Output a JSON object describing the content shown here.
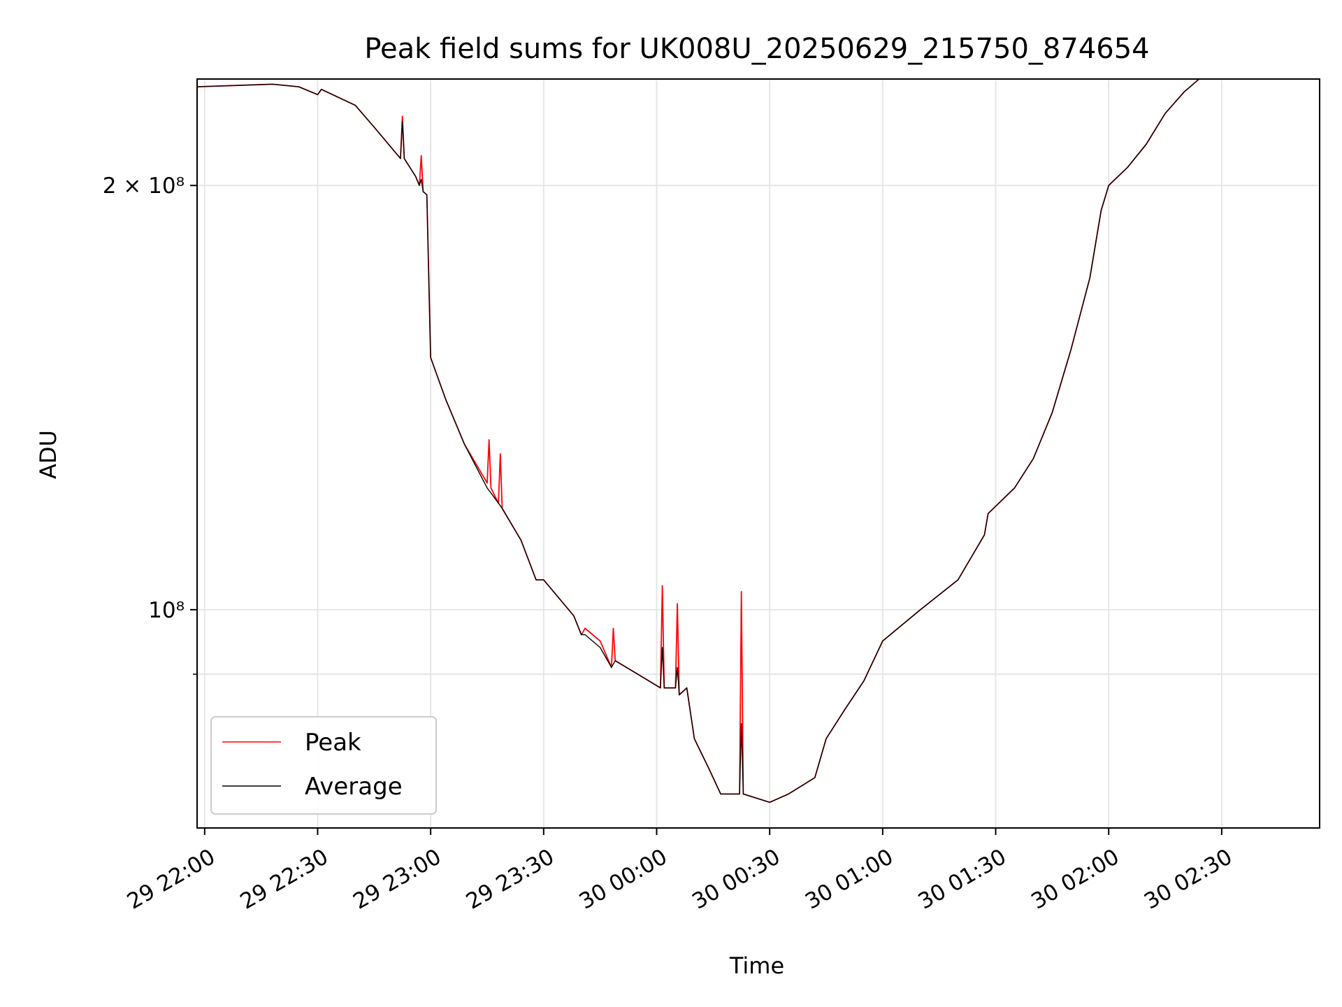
{
  "chart_data": {
    "type": "line",
    "title": "Peak field sums for UK008U_20250629_215750_874654",
    "xlabel": "Time",
    "ylabel": "ADU",
    "yscale": "log",
    "grid": true,
    "legend_position": "lower-left",
    "x_ticks": [
      "29 22:00",
      "29 22:30",
      "29 23:00",
      "29 23:30",
      "30 00:00",
      "30 00:30",
      "30 01:00",
      "30 01:30",
      "30 02:00",
      "30 02:30"
    ],
    "y_tick_labels": [
      "2 × 10⁸",
      "10⁸"
    ],
    "xlim": [
      "2025-06-29 21:58",
      "2025-06-30 02:56"
    ],
    "ylim": [
      70000000.0,
      238000000.0
    ],
    "series": [
      {
        "name": "Peak",
        "color": "#ff0000",
        "x": [
          "2025-06-29 21:58",
          "2025-06-29 22:18",
          "2025-06-29 22:25",
          "2025-06-29 22:30",
          "2025-06-29 22:31",
          "2025-06-29 22:40",
          "2025-06-29 22:45",
          "2025-06-29 22:52",
          "2025-06-29 22:52:30",
          "2025-06-29 22:53",
          "2025-06-29 22:56",
          "2025-06-29 22:57",
          "2025-06-29 22:57:30",
          "2025-06-29 22:58",
          "2025-06-29 22:59",
          "2025-06-29 23:00",
          "2025-06-29 23:04",
          "2025-06-29 23:09",
          "2025-06-29 23:15",
          "2025-06-29 23:15:30",
          "2025-06-29 23:16",
          "2025-06-29 23:18",
          "2025-06-29 23:18:30",
          "2025-06-29 23:19",
          "2025-06-29 23:24",
          "2025-06-29 23:28",
          "2025-06-29 23:30",
          "2025-06-29 23:38",
          "2025-06-29 23:40",
          "2025-06-29 23:41",
          "2025-06-29 23:45",
          "2025-06-29 23:48",
          "2025-06-29 23:48:30",
          "2025-06-29 23:49",
          "2025-06-29 23:55",
          "2025-06-30 00:01",
          "2025-06-30 00:01:30",
          "2025-06-30 00:02",
          "2025-06-30 00:05",
          "2025-06-30 00:05:30",
          "2025-06-30 00:06",
          "2025-06-30 00:08",
          "2025-06-30 00:10",
          "2025-06-30 00:14",
          "2025-06-30 00:17",
          "2025-06-30 00:22",
          "2025-06-30 00:22:30",
          "2025-06-30 00:23",
          "2025-06-30 00:30",
          "2025-06-30 00:35",
          "2025-06-30 00:42",
          "2025-06-30 00:45",
          "2025-06-30 00:50",
          "2025-06-30 00:55",
          "2025-06-30 01:00",
          "2025-06-30 01:10",
          "2025-06-30 01:20",
          "2025-06-30 01:27",
          "2025-06-30 01:28",
          "2025-06-30 01:35",
          "2025-06-30 01:40",
          "2025-06-30 01:45",
          "2025-06-30 01:50",
          "2025-06-30 01:55",
          "2025-06-30 01:58",
          "2025-06-30 02:00",
          "2025-06-30 02:05",
          "2025-06-30 02:10",
          "2025-06-30 02:15",
          "2025-06-30 02:20",
          "2025-06-30 02:24"
        ],
        "y": [
          235000000.0,
          236000000.0,
          235000000.0,
          232000000.0,
          234000000.0,
          228000000.0,
          220000000.0,
          209000000.0,
          224000000.0,
          209000000.0,
          203000000.0,
          200000000.0,
          210000000.0,
          198000000.0,
          197000000.0,
          151000000.0,
          141000000.0,
          131000000.0,
          123000000.0,
          132000000.0,
          122000000.0,
          119000000.0,
          129000000.0,
          118000000.0,
          112000000.0,
          105000000.0,
          105000000.0,
          99000000.0,
          96000000.0,
          97000000.0,
          95000000.0,
          91000000.0,
          97000000.0,
          92000000.0,
          90000000.0,
          88000000.0,
          104000000.0,
          88000000.0,
          88000000.0,
          101000000.0,
          87000000.0,
          88000000.0,
          81000000.0,
          77000000.0,
          74000000.0,
          74000000.0,
          103000000.0,
          74000000.0,
          73000000.0,
          74000000.0,
          76000000.0,
          81000000.0,
          85000000.0,
          89000000.0,
          95000000.0,
          100000000.0,
          105000000.0,
          113000000.0,
          117000000.0,
          122000000.0,
          128000000.0,
          138000000.0,
          153000000.0,
          172000000.0,
          192000000.0,
          200000000.0,
          206000000.0,
          214000000.0,
          225000000.0,
          233000000.0,
          238000000.0
        ]
      },
      {
        "name": "Average",
        "color": "#000000",
        "x": [
          "2025-06-29 21:58",
          "2025-06-29 22:18",
          "2025-06-29 22:25",
          "2025-06-29 22:30",
          "2025-06-29 22:31",
          "2025-06-29 22:40",
          "2025-06-29 22:45",
          "2025-06-29 22:52",
          "2025-06-29 22:52:30",
          "2025-06-29 22:53",
          "2025-06-29 22:56",
          "2025-06-29 22:57",
          "2025-06-29 22:57:30",
          "2025-06-29 22:58",
          "2025-06-29 22:59",
          "2025-06-29 23:00",
          "2025-06-29 23:04",
          "2025-06-29 23:09",
          "2025-06-29 23:15",
          "2025-06-29 23:16",
          "2025-06-29 23:18",
          "2025-06-29 23:19",
          "2025-06-29 23:24",
          "2025-06-29 23:28",
          "2025-06-29 23:30",
          "2025-06-29 23:38",
          "2025-06-29 23:40",
          "2025-06-29 23:41",
          "2025-06-29 23:45",
          "2025-06-29 23:48",
          "2025-06-29 23:49",
          "2025-06-29 23:55",
          "2025-06-30 00:01",
          "2025-06-30 00:01:30",
          "2025-06-30 00:02",
          "2025-06-30 00:05",
          "2025-06-30 00:05:30",
          "2025-06-30 00:06",
          "2025-06-30 00:08",
          "2025-06-30 00:10",
          "2025-06-30 00:14",
          "2025-06-30 00:17",
          "2025-06-30 00:22",
          "2025-06-30 00:22:30",
          "2025-06-30 00:23",
          "2025-06-30 00:30",
          "2025-06-30 00:35",
          "2025-06-30 00:42",
          "2025-06-30 00:45",
          "2025-06-30 00:50",
          "2025-06-30 00:55",
          "2025-06-30 01:00",
          "2025-06-30 01:10",
          "2025-06-30 01:20",
          "2025-06-30 01:27",
          "2025-06-30 01:28",
          "2025-06-30 01:35",
          "2025-06-30 01:40",
          "2025-06-30 01:45",
          "2025-06-30 01:50",
          "2025-06-30 01:55",
          "2025-06-30 01:58",
          "2025-06-30 02:00",
          "2025-06-30 02:05",
          "2025-06-30 02:10",
          "2025-06-30 02:15",
          "2025-06-30 02:20",
          "2025-06-30 02:24"
        ],
        "y": [
          235000000.0,
          236000000.0,
          235000000.0,
          232000000.0,
          234000000.0,
          228000000.0,
          220000000.0,
          209000000.0,
          222000000.0,
          209000000.0,
          203000000.0,
          200000000.0,
          202000000.0,
          198000000.0,
          197000000.0,
          151000000.0,
          141000000.0,
          131000000.0,
          122000000.0,
          121000000.0,
          119000000.0,
          118000000.0,
          112000000.0,
          105000000.0,
          105000000.0,
          99000000.0,
          96000000.0,
          96000000.0,
          94000000.0,
          91000000.0,
          92000000.0,
          90000000.0,
          88000000.0,
          94000000.0,
          88000000.0,
          88000000.0,
          91000000.0,
          87000000.0,
          88000000.0,
          81000000.0,
          77000000.0,
          74000000.0,
          74000000.0,
          83000000.0,
          74000000.0,
          73000000.0,
          74000000.0,
          76000000.0,
          81000000.0,
          85000000.0,
          89000000.0,
          95000000.0,
          100000000.0,
          105000000.0,
          113000000.0,
          117000000.0,
          122000000.0,
          128000000.0,
          138000000.0,
          153000000.0,
          172000000.0,
          192000000.0,
          200000000.0,
          206000000.0,
          214000000.0,
          225000000.0,
          233000000.0,
          238000000.0
        ]
      }
    ]
  }
}
